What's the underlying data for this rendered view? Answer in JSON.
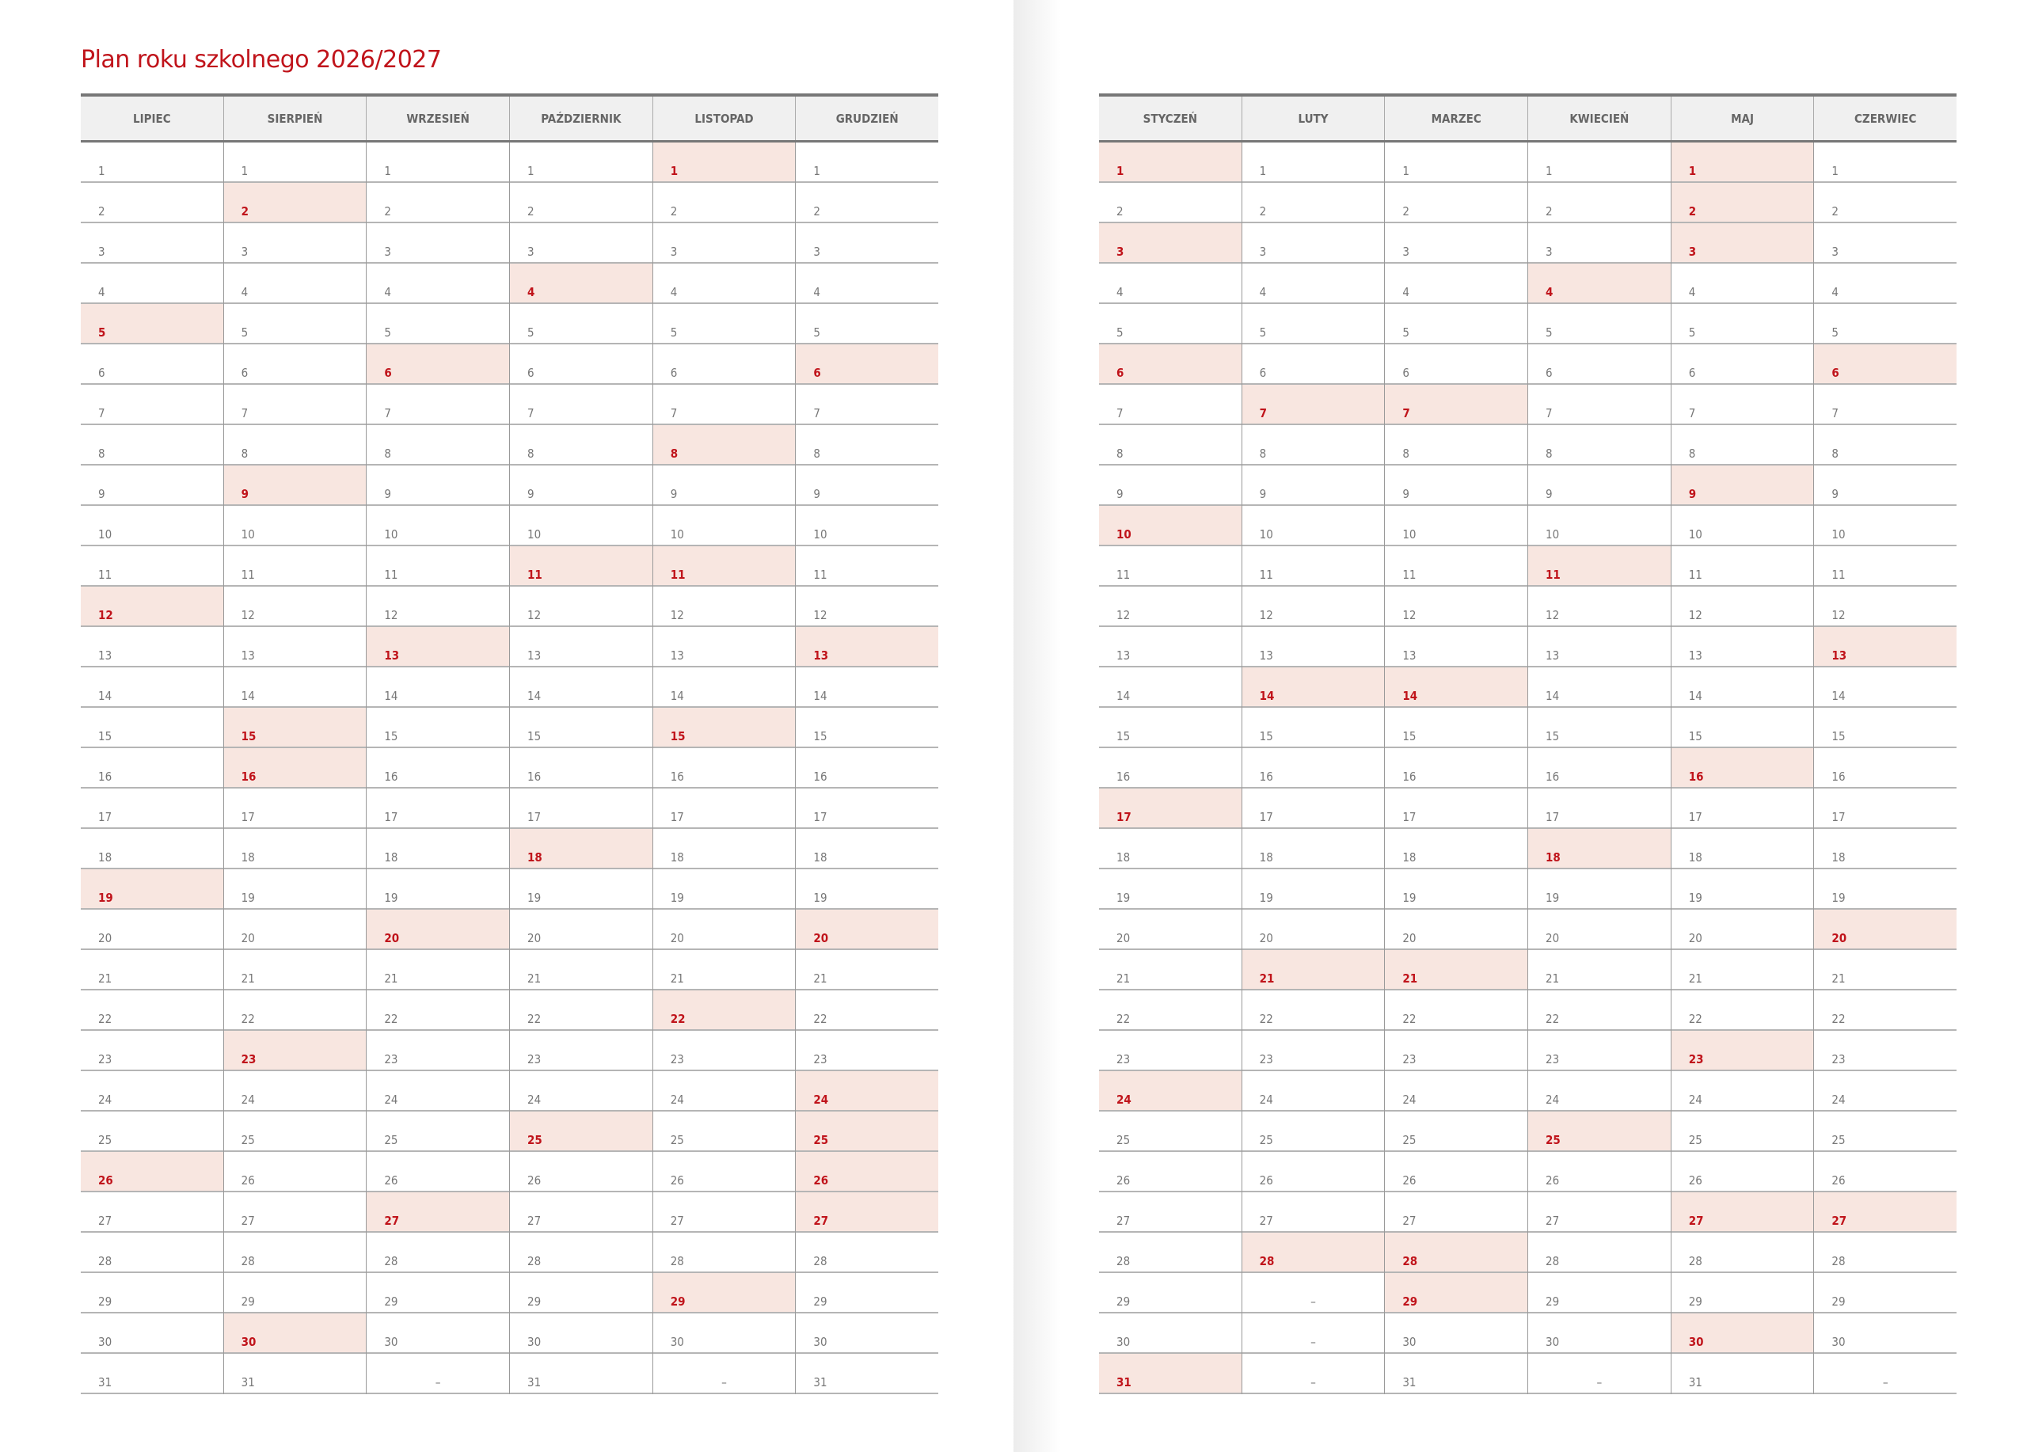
{
  "title": "Plan roku szkolnego 2026/2027",
  "missing_day_mark": "–",
  "colors": {
    "accent": "#c0141b",
    "highlight_bg": "#f8e6e0",
    "header_bg": "#f0f0f0",
    "text": "#777777"
  },
  "pages": [
    {
      "months": [
        {
          "name": "LIPIEC",
          "day_count": 31,
          "highlighted": [
            5,
            12,
            19,
            26
          ]
        },
        {
          "name": "SIERPIEŃ",
          "day_count": 31,
          "highlighted": [
            2,
            9,
            15,
            16,
            23,
            30
          ]
        },
        {
          "name": "WRZESIEŃ",
          "day_count": 30,
          "highlighted": [
            6,
            13,
            20,
            27
          ]
        },
        {
          "name": "PAŹDZIERNIK",
          "day_count": 31,
          "highlighted": [
            4,
            11,
            18,
            25
          ]
        },
        {
          "name": "LISTOPAD",
          "day_count": 30,
          "highlighted": [
            1,
            8,
            11,
            15,
            22,
            29
          ]
        },
        {
          "name": "GRUDZIEŃ",
          "day_count": 31,
          "highlighted": [
            6,
            13,
            20,
            24,
            25,
            26,
            27
          ]
        }
      ]
    },
    {
      "months": [
        {
          "name": "STYCZEŃ",
          "day_count": 31,
          "highlighted": [
            1,
            3,
            6,
            10,
            17,
            24,
            31
          ]
        },
        {
          "name": "LUTY",
          "day_count": 28,
          "highlighted": [
            7,
            14,
            21,
            28
          ]
        },
        {
          "name": "MARZEC",
          "day_count": 31,
          "highlighted": [
            7,
            14,
            21,
            28,
            29
          ]
        },
        {
          "name": "KWIECIEŃ",
          "day_count": 30,
          "highlighted": [
            4,
            11,
            18,
            25
          ]
        },
        {
          "name": "MAJ",
          "day_count": 31,
          "highlighted": [
            1,
            2,
            3,
            9,
            16,
            23,
            27,
            30
          ]
        },
        {
          "name": "CZERWIEC",
          "day_count": 30,
          "highlighted": [
            6,
            13,
            20,
            27
          ]
        }
      ]
    }
  ]
}
